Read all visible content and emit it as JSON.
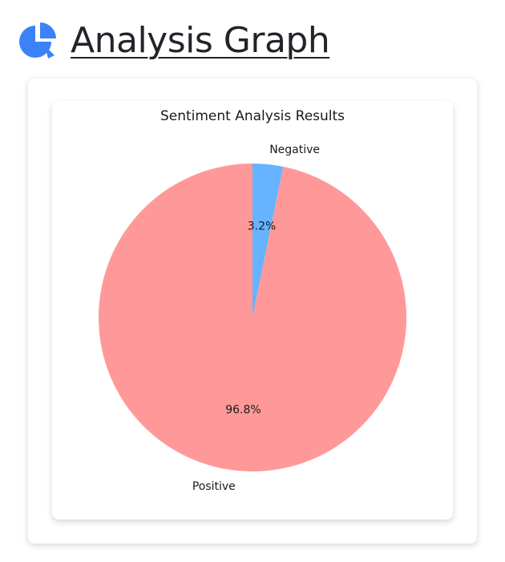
{
  "header": {
    "title": "Analysis Graph",
    "icon": "pie-chart-icon",
    "icon_color": "#3b82f6"
  },
  "chart_data": {
    "type": "pie",
    "title": "Sentiment Analysis Results",
    "categories": [
      "Negative",
      "Positive"
    ],
    "values": [
      3.2,
      96.8
    ],
    "value_labels": [
      "3.2%",
      "96.8%"
    ],
    "colors": [
      "#66b3ff",
      "#ff9999"
    ],
    "start_angle_deg": 90,
    "direction": "clockwise",
    "legend": "none"
  }
}
